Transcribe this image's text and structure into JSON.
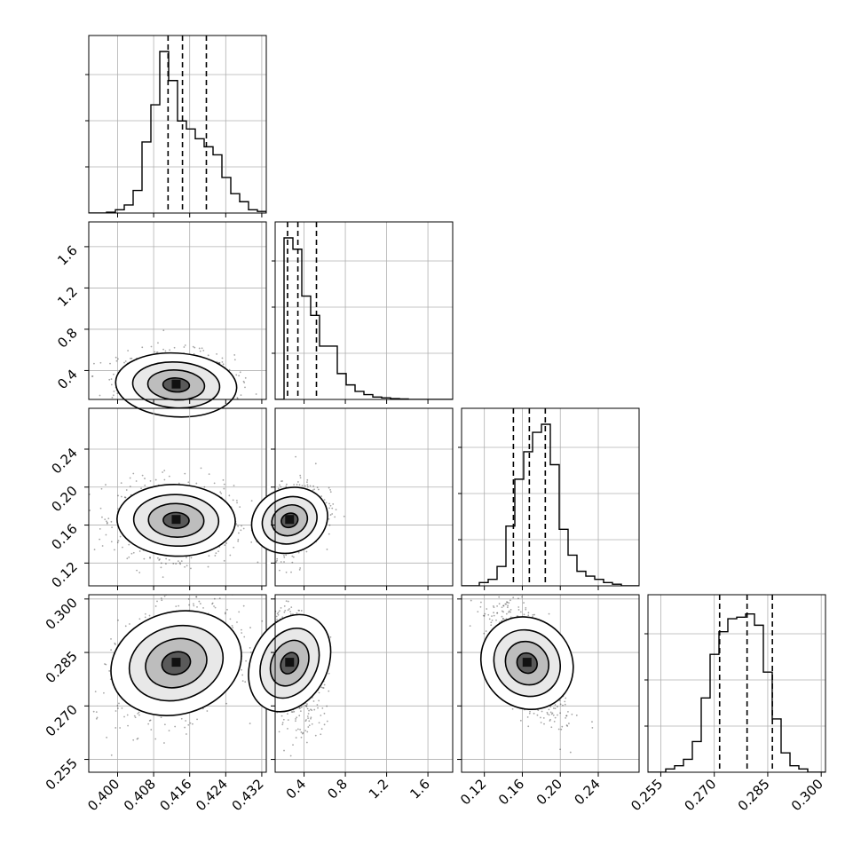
{
  "chart_data": {
    "type": "corner",
    "parameters": [
      {
        "range": [
          0.3936,
          0.433
        ],
        "ticks": [
          {
            "value": 0.4,
            "label": "0.400"
          },
          {
            "value": 0.408,
            "label": "0.408"
          },
          {
            "value": 0.416,
            "label": "0.416"
          },
          {
            "value": 0.424,
            "label": "0.424"
          },
          {
            "value": 0.432,
            "label": "0.432"
          }
        ],
        "quantiles": [
          0.4112,
          0.4144,
          0.4197
        ],
        "hist": [
          0,
          0,
          0.005,
          0.02,
          0.05,
          0.14,
          0.44,
          0.67,
          1.0,
          0.82,
          0.57,
          0.52,
          0.46,
          0.41,
          0.36,
          0.22,
          0.12,
          0.07,
          0.02,
          0.01
        ],
        "density_peak": 0.413,
        "density_width": 0.004
      },
      {
        "range": [
          0.12,
          1.84
        ],
        "ticks": [
          {
            "value": 0.4,
            "label": "0.4"
          },
          {
            "value": 0.8,
            "label": "0.8"
          },
          {
            "value": 1.2,
            "label": "1.2"
          },
          {
            "value": 1.6,
            "label": "1.6"
          }
        ],
        "quantiles": [
          0.24,
          0.34,
          0.52
        ],
        "hist": [
          0,
          1.0,
          0.93,
          0.64,
          0.52,
          0.33,
          0.33,
          0.16,
          0.09,
          0.05,
          0.03,
          0.015,
          0.01,
          0.005,
          0.003,
          0,
          0,
          0,
          0,
          0
        ],
        "density_peak": 0.26,
        "density_width": 0.1
      },
      {
        "range": [
          0.096,
          0.283
        ],
        "ticks": [
          {
            "value": 0.12,
            "label": "0.12"
          },
          {
            "value": 0.16,
            "label": "0.16"
          },
          {
            "value": 0.2,
            "label": "0.20"
          },
          {
            "value": 0.24,
            "label": "0.24"
          }
        ],
        "quantiles": [
          0.1506,
          0.1674,
          0.1842
        ],
        "hist": [
          0,
          0,
          0.02,
          0.04,
          0.12,
          0.37,
          0.66,
          0.83,
          0.95,
          1.0,
          0.75,
          0.35,
          0.19,
          0.09,
          0.06,
          0.04,
          0.02,
          0.01,
          0,
          0
        ],
        "density_peak": 0.165,
        "density_width": 0.012
      },
      {
        "range": [
          0.2514,
          0.3012
        ],
        "ticks": [
          {
            "value": 0.255,
            "label": "0.255"
          },
          {
            "value": 0.27,
            "label": "0.270"
          },
          {
            "value": 0.285,
            "label": "0.285"
          },
          {
            "value": 0.3,
            "label": "0.300"
          }
        ],
        "quantiles": [
          0.2715,
          0.2792,
          0.2863
        ],
        "hist": [
          0,
          0,
          0.02,
          0.04,
          0.08,
          0.19,
          0.46,
          0.73,
          0.87,
          0.95,
          0.96,
          0.98,
          0.91,
          0.62,
          0.33,
          0.12,
          0.04,
          0.02,
          0,
          0
        ],
        "density_peak": 0.282,
        "density_width": 0.005
      }
    ],
    "pairs": [
      {
        "row": 1,
        "col": 0,
        "correlation": -0.1
      },
      {
        "row": 2,
        "col": 0,
        "correlation": -0.05
      },
      {
        "row": 2,
        "col": 1,
        "correlation": 0.35
      },
      {
        "row": 3,
        "col": 0,
        "correlation": 0.3
      },
      {
        "row": 3,
        "col": 1,
        "correlation": -0.3
      },
      {
        "row": 3,
        "col": 2,
        "correlation": -0.65
      }
    ],
    "grid": true,
    "axis_labels": [
      "",
      "",
      "",
      ""
    ]
  }
}
